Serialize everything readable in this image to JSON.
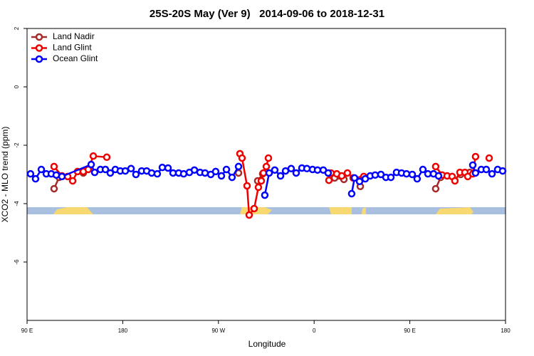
{
  "chart_data": {
    "type": "line",
    "title": "25S-20S May (Ver 9)   2014-09-06 to 2018-12-31",
    "x_label": "Longitude",
    "y_label": "XCO2 - MLO trend (ppm)",
    "xlim": [
      90,
      540
    ],
    "ylim": [
      -8,
      2
    ],
    "xticks": [
      {
        "value": 90,
        "label": "90 E"
      },
      180,
      {
        "value": 270,
        "label": "90 W"
      },
      {
        "value": 360,
        "label": "0"
      },
      {
        "value": 450,
        "label": "90 E"
      },
      {
        "value": 540,
        "label": "180"
      }
    ],
    "yticks": [
      -6,
      -4,
      -2,
      0,
      2
    ],
    "legend": "top-left",
    "series": [
      {
        "name": "Land Nadir",
        "color": "#a52a2a",
        "x": [
          115.4,
          120.1,
          null,
          142.9,
          null,
          288.9,
          null,
          306.9,
          311.6,
          null,
          379.3,
          388.0,
          null,
          403.4,
          null,
          474.3,
          479.0,
          null,
          497.8,
          506.5
        ],
        "values": [
          -3.49,
          -3.1,
          null,
          -2.95,
          null,
          -2.95,
          null,
          -3.22,
          -2.98,
          null,
          -3.12,
          -3.17,
          null,
          -3.41,
          null,
          -3.49,
          -3.1,
          null,
          -3.0,
          -2.93
        ]
      },
      {
        "name": "Land Glint",
        "color": "#ee0000",
        "x": [
          115.4,
          122.8,
          128.2,
          132.9,
          137.5,
          142.9,
          147.6,
          152.3,
          165.0,
          null,
          290.2,
          292.2,
          296.9,
          298.9,
          303.6,
          307.6,
          310.3,
          312.3,
          315.0,
          317.0,
          null,
          373.9,
          375.9,
          381.3,
          386.0,
          391.3,
          396.7,
          406.7,
          null,
          474.3,
          480.4,
          485.1,
          489.8,
          492.4,
          497.1,
          501.8,
          504.5,
          509.2,
          511.8,
          null,
          524.6
        ],
        "values": [
          -2.73,
          -3.05,
          -3.07,
          -3.22,
          -2.9,
          -2.9,
          -2.83,
          -2.37,
          -2.41,
          null,
          -2.29,
          -2.44,
          -3.39,
          -4.39,
          -4.17,
          -3.44,
          -3.22,
          -2.95,
          -2.73,
          -2.44,
          null,
          -3.2,
          -2.95,
          -2.98,
          -3.05,
          -2.95,
          -3.12,
          -3.07,
          null,
          -2.73,
          -3.02,
          -3.05,
          -3.07,
          -3.22,
          -2.93,
          -2.93,
          -3.07,
          -2.98,
          -2.39,
          null,
          -2.44
        ]
      },
      {
        "name": "Ocean Glint",
        "color": "#0000ff",
        "x": [
          93.3,
          98.0,
          103.4,
          108.1,
          112.8,
          117.5,
          122.8,
          150.3,
          153.6,
          159.0,
          163.7,
          168.3,
          173.0,
          177.7,
          182.4,
          187.8,
          192.4,
          197.8,
          202.5,
          207.2,
          212.5,
          217.2,
          222.6,
          227.3,
          232.6,
          237.3,
          242.7,
          247.4,
          252.7,
          257.4,
          262.8,
          267.4,
          272.8,
          277.5,
          282.8,
          288.9,
          null,
          313.6,
          317.7,
          323.0,
          328.4,
          333.1,
          338.4,
          343.1,
          348.5,
          353.2,
          358.5,
          363.2,
          368.6,
          373.2,
          null,
          395.3,
          398.0,
          402.7,
          408.1,
          412.7,
          417.4,
          422.8,
          427.5,
          432.2,
          437.5,
          442.2,
          446.9,
          452.3,
          456.9,
          462.3,
          467.0,
          472.3,
          477.0,
          null,
          509.2,
          511.8,
          517.2,
          521.9,
          527.3,
          532.6,
          537.3
        ],
        "values": [
          -2.98,
          -3.15,
          -2.83,
          -2.98,
          -2.98,
          -3.02,
          -3.07,
          -2.66,
          -2.93,
          -2.83,
          -2.83,
          -2.95,
          -2.83,
          -2.88,
          -2.88,
          -2.8,
          -3.0,
          -2.88,
          -2.88,
          -2.95,
          -2.98,
          -2.76,
          -2.78,
          -2.95,
          -2.95,
          -2.98,
          -2.93,
          -2.85,
          -2.93,
          -2.95,
          -3.0,
          -2.9,
          -3.05,
          -2.83,
          -3.1,
          -2.73,
          null,
          -3.71,
          -2.95,
          -2.85,
          -3.05,
          -2.88,
          -2.8,
          -2.95,
          -2.78,
          -2.8,
          -2.83,
          -2.85,
          -2.85,
          -2.95,
          null,
          -3.66,
          -3.12,
          -3.24,
          -3.15,
          -3.05,
          -3.02,
          -3.0,
          -3.1,
          -3.1,
          -2.93,
          -2.95,
          -2.98,
          -3.0,
          -3.15,
          -2.83,
          -2.98,
          -2.98,
          -3.05,
          null,
          -2.68,
          -2.95,
          -2.83,
          -2.83,
          -2.98,
          -2.83,
          -2.88
        ]
      }
    ]
  }
}
